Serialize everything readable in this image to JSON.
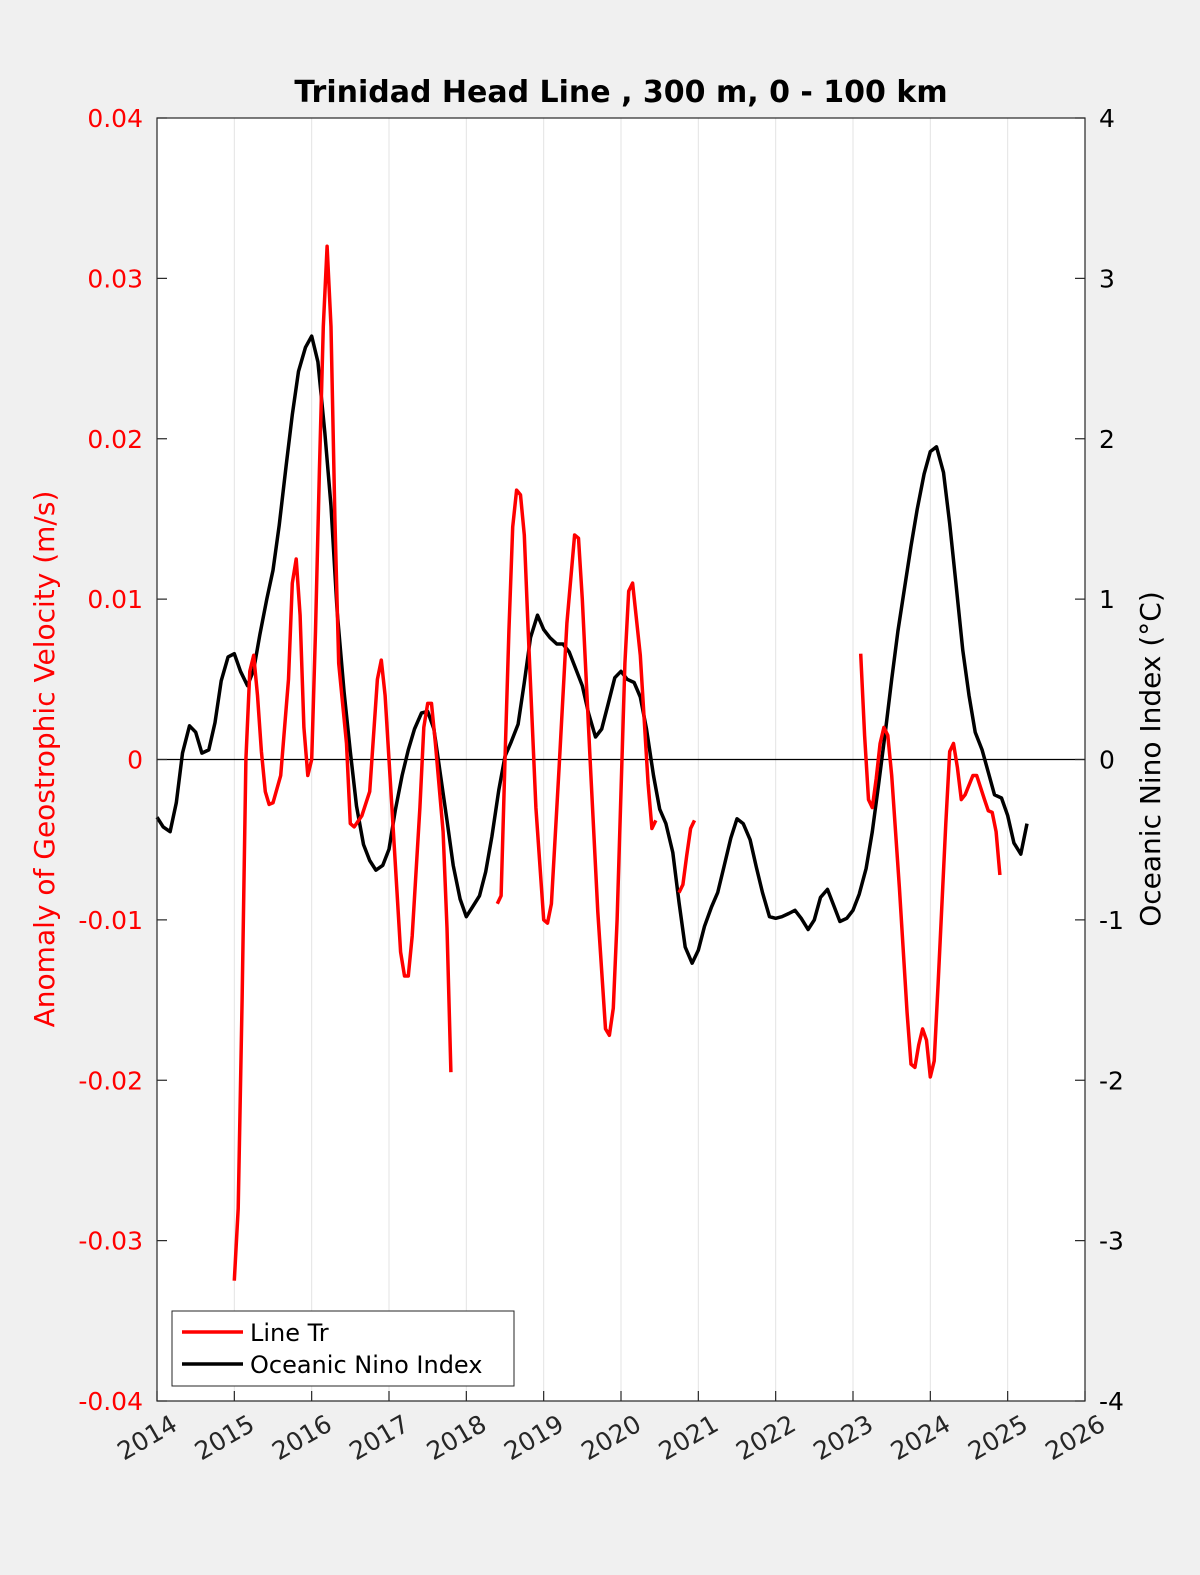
{
  "chart_data": {
    "type": "line",
    "title": "Trinidad Head Line , 300 m, 0 - 100 km",
    "xlim": [
      2014,
      2026
    ],
    "x_ticks": [
      "2014",
      "2015",
      "2016",
      "2017",
      "2018",
      "2019",
      "2020",
      "2021",
      "2022",
      "2023",
      "2024",
      "2025",
      "2026"
    ],
    "y_left": {
      "label": "Anomaly of Geostrophic Velocity (m/s)",
      "lim": [
        -0.04,
        0.04
      ],
      "ticks": [
        "-0.04",
        "-0.03",
        "-0.02",
        "-0.01",
        "0",
        "0.01",
        "0.02",
        "0.03",
        "0.04"
      ],
      "color": "#ff0000"
    },
    "y_right": {
      "label": "Oceanic Nino Index (°C)",
      "lim": [
        -4,
        4
      ],
      "ticks": [
        "-4",
        "-3",
        "-2",
        "-1",
        "0",
        "1",
        "2",
        "3",
        "4"
      ],
      "color": "#000000"
    },
    "grid": "vertical",
    "zero_line": true,
    "legend_position": "bottom-left",
    "series": [
      {
        "name": "Line Tr",
        "axis": "left",
        "color": "#ff0000",
        "segments": [
          [
            [
              2015.0,
              -0.0325
            ],
            [
              2015.05,
              -0.028
            ],
            [
              2015.1,
              -0.015
            ],
            [
              2015.15,
              0.0
            ],
            [
              2015.2,
              0.0055
            ],
            [
              2015.25,
              0.0065
            ],
            [
              2015.3,
              0.004
            ],
            [
              2015.35,
              0.0005
            ],
            [
              2015.4,
              -0.002
            ],
            [
              2015.45,
              -0.0028
            ],
            [
              2015.5,
              -0.0027
            ],
            [
              2015.6,
              -0.001
            ],
            [
              2015.7,
              0.005
            ],
            [
              2015.75,
              0.011
            ],
            [
              2015.8,
              0.0125
            ],
            [
              2015.85,
              0.009
            ],
            [
              2015.9,
              0.002
            ],
            [
              2015.95,
              -0.001
            ],
            [
              2016.0,
              0.0
            ],
            [
              2016.05,
              0.008
            ],
            [
              2016.1,
              0.018
            ],
            [
              2016.15,
              0.027
            ],
            [
              2016.2,
              0.032
            ],
            [
              2016.25,
              0.027
            ],
            [
              2016.3,
              0.015
            ],
            [
              2016.35,
              0.006
            ],
            [
              2016.45,
              0.001
            ],
            [
              2016.5,
              -0.004
            ],
            [
              2016.55,
              -0.0042
            ],
            [
              2016.65,
              -0.0035
            ],
            [
              2016.75,
              -0.002
            ],
            [
              2016.85,
              0.005
            ],
            [
              2016.9,
              0.0062
            ],
            [
              2016.95,
              0.004
            ],
            [
              2017.05,
              -0.004
            ],
            [
              2017.15,
              -0.012
            ],
            [
              2017.2,
              -0.0135
            ],
            [
              2017.25,
              -0.0135
            ],
            [
              2017.3,
              -0.011
            ],
            [
              2017.4,
              -0.003
            ],
            [
              2017.45,
              0.002
            ],
            [
              2017.5,
              0.0035
            ],
            [
              2017.55,
              0.0035
            ],
            [
              2017.6,
              0.001
            ],
            [
              2017.7,
              -0.0045
            ],
            [
              2017.75,
              -0.0105
            ],
            [
              2017.8,
              -0.0195
            ]
          ],
          [
            [
              2018.4,
              -0.009
            ],
            [
              2018.45,
              -0.0085
            ],
            [
              2018.5,
              0.0
            ],
            [
              2018.55,
              0.008
            ],
            [
              2018.6,
              0.0145
            ],
            [
              2018.65,
              0.0168
            ],
            [
              2018.7,
              0.0165
            ],
            [
              2018.75,
              0.014
            ],
            [
              2018.8,
              0.008
            ],
            [
              2018.9,
              -0.003
            ],
            [
              2019.0,
              -0.01
            ],
            [
              2019.05,
              -0.0102
            ],
            [
              2019.1,
              -0.009
            ],
            [
              2019.2,
              -0.0005
            ],
            [
              2019.3,
              0.0085
            ],
            [
              2019.4,
              0.014
            ],
            [
              2019.45,
              0.0138
            ],
            [
              2019.5,
              0.01
            ],
            [
              2019.6,
              0.0
            ],
            [
              2019.7,
              -0.0095
            ],
            [
              2019.8,
              -0.0168
            ],
            [
              2019.85,
              -0.0172
            ],
            [
              2019.9,
              -0.0155
            ],
            [
              2019.95,
              -0.01
            ],
            [
              2020.05,
              0.006
            ],
            [
              2020.1,
              0.0105
            ],
            [
              2020.15,
              0.011
            ],
            [
              2020.25,
              0.0065
            ],
            [
              2020.35,
              -0.0015
            ],
            [
              2020.4,
              -0.0043
            ],
            [
              2020.45,
              -0.0038
            ]
          ],
          [
            [
              2020.75,
              -0.0083
            ],
            [
              2020.8,
              -0.0078
            ],
            [
              2020.85,
              -0.006
            ],
            [
              2020.9,
              -0.0043
            ],
            [
              2020.95,
              -0.0038
            ]
          ],
          [
            [
              2023.1,
              0.0066
            ],
            [
              2023.15,
              0.0015
            ],
            [
              2023.2,
              -0.0025
            ],
            [
              2023.25,
              -0.003
            ],
            [
              2023.3,
              -0.0012
            ],
            [
              2023.35,
              0.001
            ],
            [
              2023.4,
              0.002
            ],
            [
              2023.45,
              0.0015
            ],
            [
              2023.5,
              -0.001
            ],
            [
              2023.6,
              -0.008
            ],
            [
              2023.7,
              -0.0158
            ],
            [
              2023.75,
              -0.019
            ],
            [
              2023.8,
              -0.0192
            ],
            [
              2023.85,
              -0.0178
            ],
            [
              2023.9,
              -0.0168
            ],
            [
              2023.95,
              -0.0175
            ],
            [
              2024.0,
              -0.0198
            ],
            [
              2024.05,
              -0.0188
            ],
            [
              2024.1,
              -0.014
            ],
            [
              2024.2,
              -0.004
            ],
            [
              2024.25,
              0.0005
            ],
            [
              2024.3,
              0.001
            ],
            [
              2024.35,
              -0.0005
            ],
            [
              2024.4,
              -0.0025
            ],
            [
              2024.45,
              -0.0022
            ],
            [
              2024.55,
              -0.001
            ],
            [
              2024.6,
              -0.001
            ],
            [
              2024.7,
              -0.0025
            ],
            [
              2024.75,
              -0.0032
            ],
            [
              2024.8,
              -0.0033
            ],
            [
              2024.85,
              -0.0045
            ],
            [
              2024.9,
              -0.0072
            ]
          ]
        ]
      },
      {
        "name": "Oceanic Nino Index",
        "axis": "right",
        "color": "#000000",
        "points": [
          [
            2014.0,
            -0.36
          ],
          [
            2014.08,
            -0.42
          ],
          [
            2014.17,
            -0.45
          ],
          [
            2014.25,
            -0.27
          ],
          [
            2014.33,
            0.04
          ],
          [
            2014.42,
            0.21
          ],
          [
            2014.5,
            0.17
          ],
          [
            2014.58,
            0.04
          ],
          [
            2014.67,
            0.06
          ],
          [
            2014.75,
            0.23
          ],
          [
            2014.83,
            0.49
          ],
          [
            2014.92,
            0.64
          ],
          [
            2015.0,
            0.66
          ],
          [
            2015.08,
            0.55
          ],
          [
            2015.17,
            0.46
          ],
          [
            2015.25,
            0.56
          ],
          [
            2015.33,
            0.78
          ],
          [
            2015.42,
            1.0
          ],
          [
            2015.5,
            1.18
          ],
          [
            2015.58,
            1.46
          ],
          [
            2015.67,
            1.83
          ],
          [
            2015.75,
            2.15
          ],
          [
            2015.83,
            2.42
          ],
          [
            2015.92,
            2.57
          ],
          [
            2016.0,
            2.64
          ],
          [
            2016.08,
            2.48
          ],
          [
            2016.17,
            2.04
          ],
          [
            2016.25,
            1.58
          ],
          [
            2016.33,
            0.92
          ],
          [
            2016.42,
            0.42
          ],
          [
            2016.5,
            0.05
          ],
          [
            2016.58,
            -0.29
          ],
          [
            2016.67,
            -0.53
          ],
          [
            2016.75,
            -0.63
          ],
          [
            2016.83,
            -0.69
          ],
          [
            2016.92,
            -0.66
          ],
          [
            2017.0,
            -0.56
          ],
          [
            2017.08,
            -0.32
          ],
          [
            2017.17,
            -0.1
          ],
          [
            2017.25,
            0.06
          ],
          [
            2017.33,
            0.19
          ],
          [
            2017.42,
            0.29
          ],
          [
            2017.5,
            0.3
          ],
          [
            2017.58,
            0.19
          ],
          [
            2017.67,
            -0.11
          ],
          [
            2017.75,
            -0.38
          ],
          [
            2017.83,
            -0.66
          ],
          [
            2017.92,
            -0.87
          ],
          [
            2018.0,
            -0.98
          ],
          [
            2018.08,
            -0.92
          ],
          [
            2018.17,
            -0.85
          ],
          [
            2018.25,
            -0.7
          ],
          [
            2018.33,
            -0.48
          ],
          [
            2018.42,
            -0.19
          ],
          [
            2018.5,
            0.02
          ],
          [
            2018.58,
            0.11
          ],
          [
            2018.67,
            0.22
          ],
          [
            2018.75,
            0.48
          ],
          [
            2018.83,
            0.76
          ],
          [
            2018.92,
            0.9
          ],
          [
            2019.0,
            0.81
          ],
          [
            2019.08,
            0.76
          ],
          [
            2019.17,
            0.72
          ],
          [
            2019.25,
            0.72
          ],
          [
            2019.33,
            0.67
          ],
          [
            2019.42,
            0.56
          ],
          [
            2019.5,
            0.46
          ],
          [
            2019.58,
            0.29
          ],
          [
            2019.67,
            0.14
          ],
          [
            2019.75,
            0.19
          ],
          [
            2019.83,
            0.34
          ],
          [
            2019.92,
            0.51
          ],
          [
            2020.0,
            0.55
          ],
          [
            2020.08,
            0.5
          ],
          [
            2020.17,
            0.48
          ],
          [
            2020.25,
            0.39
          ],
          [
            2020.33,
            0.19
          ],
          [
            2020.42,
            -0.1
          ],
          [
            2020.5,
            -0.31
          ],
          [
            2020.58,
            -0.4
          ],
          [
            2020.67,
            -0.58
          ],
          [
            2020.75,
            -0.89
          ],
          [
            2020.83,
            -1.17
          ],
          [
            2020.92,
            -1.27
          ],
          [
            2021.0,
            -1.19
          ],
          [
            2021.08,
            -1.04
          ],
          [
            2021.17,
            -0.92
          ],
          [
            2021.25,
            -0.83
          ],
          [
            2021.33,
            -0.67
          ],
          [
            2021.42,
            -0.49
          ],
          [
            2021.5,
            -0.37
          ],
          [
            2021.58,
            -0.4
          ],
          [
            2021.67,
            -0.5
          ],
          [
            2021.75,
            -0.67
          ],
          [
            2021.83,
            -0.83
          ],
          [
            2021.92,
            -0.98
          ],
          [
            2022.0,
            -0.99
          ],
          [
            2022.08,
            -0.98
          ],
          [
            2022.17,
            -0.96
          ],
          [
            2022.25,
            -0.94
          ],
          [
            2022.33,
            -0.99
          ],
          [
            2022.42,
            -1.06
          ],
          [
            2022.5,
            -1.0
          ],
          [
            2022.58,
            -0.86
          ],
          [
            2022.67,
            -0.81
          ],
          [
            2022.75,
            -0.91
          ],
          [
            2022.83,
            -1.01
          ],
          [
            2022.92,
            -0.99
          ],
          [
            2023.0,
            -0.94
          ],
          [
            2023.08,
            -0.84
          ],
          [
            2023.17,
            -0.68
          ],
          [
            2023.25,
            -0.45
          ],
          [
            2023.33,
            -0.16
          ],
          [
            2023.42,
            0.18
          ],
          [
            2023.5,
            0.5
          ],
          [
            2023.58,
            0.8
          ],
          [
            2023.67,
            1.08
          ],
          [
            2023.75,
            1.33
          ],
          [
            2023.83,
            1.56
          ],
          [
            2023.92,
            1.78
          ],
          [
            2024.0,
            1.92
          ],
          [
            2024.08,
            1.95
          ],
          [
            2024.17,
            1.79
          ],
          [
            2024.25,
            1.47
          ],
          [
            2024.33,
            1.1
          ],
          [
            2024.42,
            0.68
          ],
          [
            2024.5,
            0.4
          ],
          [
            2024.58,
            0.17
          ],
          [
            2024.67,
            0.06
          ],
          [
            2024.75,
            -0.08
          ],
          [
            2024.83,
            -0.22
          ],
          [
            2024.92,
            -0.24
          ],
          [
            2025.0,
            -0.35
          ],
          [
            2025.08,
            -0.52
          ],
          [
            2025.17,
            -0.59
          ],
          [
            2025.25,
            -0.4
          ]
        ]
      }
    ]
  }
}
